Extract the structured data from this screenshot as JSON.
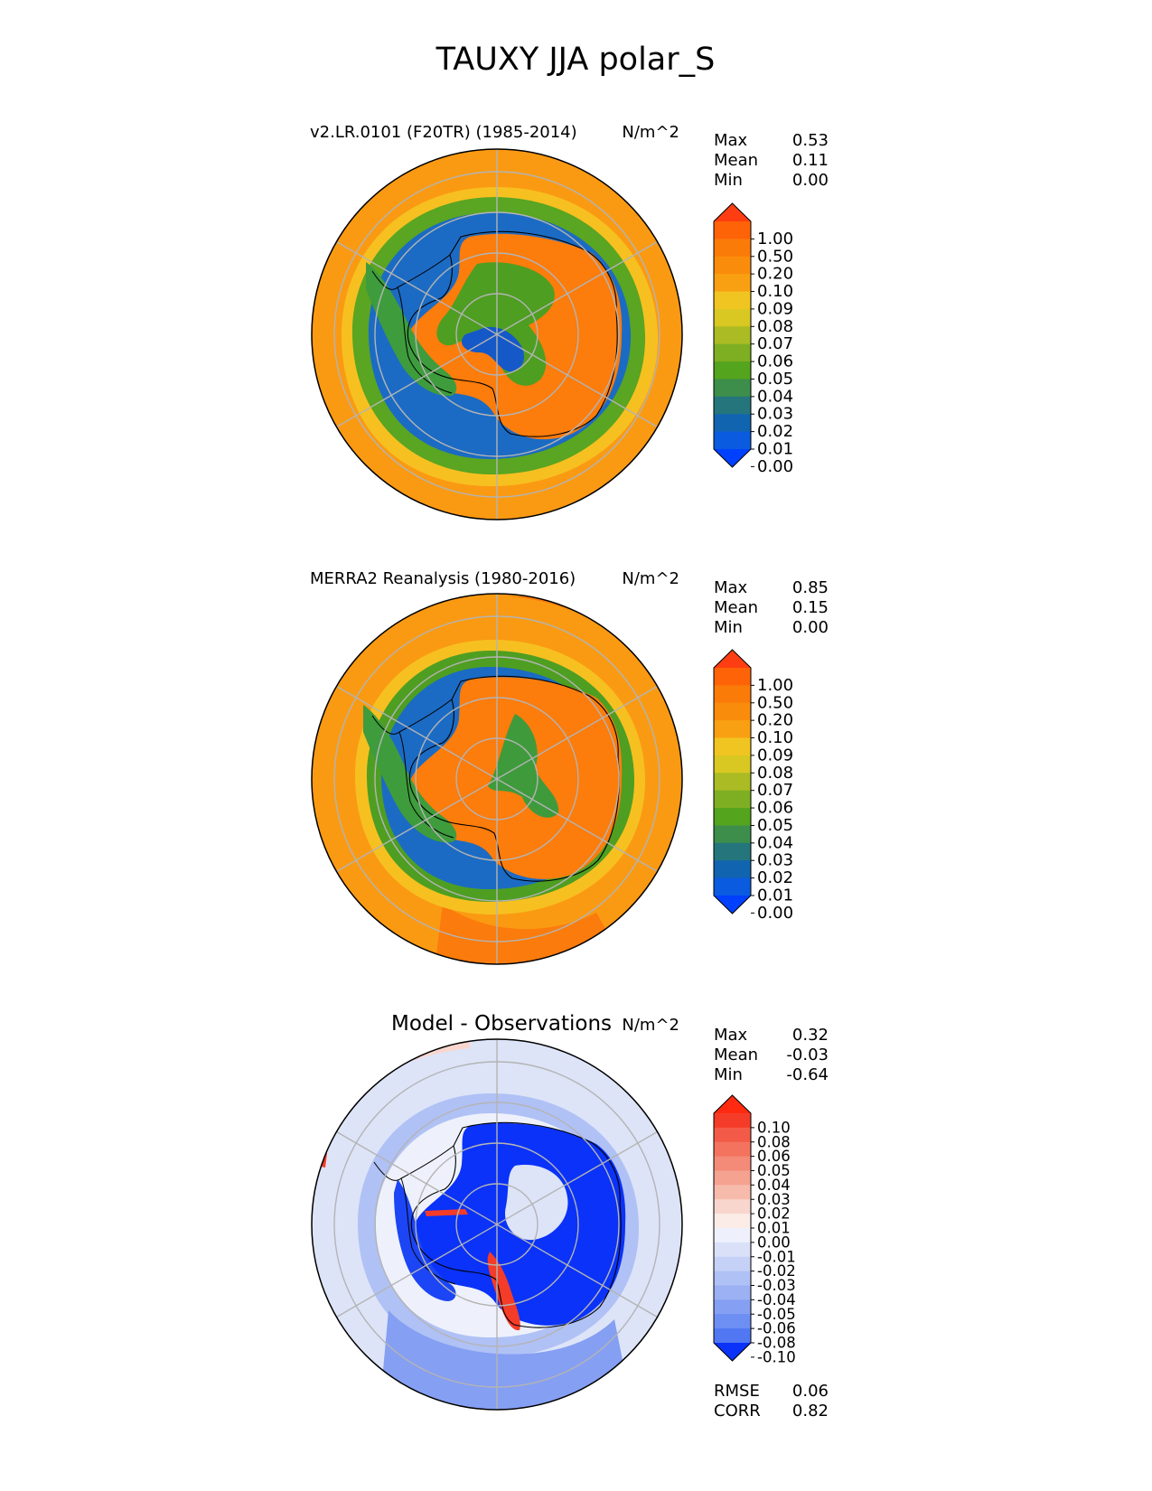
{
  "figure": {
    "title": "TAUXY JJA polar_S"
  },
  "panels": [
    {
      "id": "model",
      "title": "v2.LR.0101 (F20TR) (1985-2014)",
      "units": "N/m^2",
      "stats": [
        {
          "label": "Max",
          "value": "0.53"
        },
        {
          "label": "Mean",
          "value": "0.11"
        },
        {
          "label": "Min",
          "value": "0.00"
        }
      ]
    },
    {
      "id": "obs",
      "title": "MERRA2 Reanalysis (1980-2016)",
      "units": "N/m^2",
      "stats": [
        {
          "label": "Max",
          "value": "0.85"
        },
        {
          "label": "Mean",
          "value": "0.15"
        },
        {
          "label": "Min",
          "value": "0.00"
        }
      ]
    },
    {
      "id": "diff",
      "title": "Model - Observations",
      "units": "N/m^2",
      "stats": [
        {
          "label": "Max",
          "value": "0.32"
        },
        {
          "label": "Mean",
          "value": "-0.03"
        },
        {
          "label": "Min",
          "value": "-0.64"
        }
      ],
      "metrics": [
        {
          "label": "RMSE",
          "value": "0.06"
        },
        {
          "label": "CORR",
          "value": "0.82"
        }
      ]
    }
  ],
  "chart_data": [
    {
      "type": "heatmap",
      "projection": "south-polar-stereographic",
      "title": "v2.LR.0101 (F20TR) (1985-2014)",
      "units": "N/m^2",
      "colorbar": {
        "levels": [
          "1.00",
          "0.50",
          "0.20",
          "0.10",
          "0.09",
          "0.08",
          "0.07",
          "0.06",
          "0.05",
          "0.04",
          "0.03",
          "0.02",
          "0.01",
          "0.00"
        ],
        "colors": [
          "#fe3d12",
          "#fe6308",
          "#fb7b08",
          "#fa8c0c",
          "#f9a012",
          "#f1c521",
          "#d9c722",
          "#aabb24",
          "#7eaf22",
          "#55a41e",
          "#3c8e4a",
          "#24767c",
          "#1164b0",
          "#0a5be0",
          "#0040ff"
        ],
        "extend": "both"
      },
      "stats": {
        "max": 0.53,
        "mean": 0.11,
        "min": 0.0
      }
    },
    {
      "type": "heatmap",
      "projection": "south-polar-stereographic",
      "title": "MERRA2 Reanalysis (1980-2016)",
      "units": "N/m^2",
      "colorbar": {
        "levels": [
          "1.00",
          "0.50",
          "0.20",
          "0.10",
          "0.09",
          "0.08",
          "0.07",
          "0.06",
          "0.05",
          "0.04",
          "0.03",
          "0.02",
          "0.01",
          "0.00"
        ],
        "colors": [
          "#fe3d12",
          "#fe6308",
          "#fb7b08",
          "#fa8c0c",
          "#f9a012",
          "#f1c521",
          "#d9c722",
          "#aabb24",
          "#7eaf22",
          "#55a41e",
          "#3c8e4a",
          "#24767c",
          "#1164b0",
          "#0a5be0",
          "#0040ff"
        ],
        "extend": "both"
      },
      "stats": {
        "max": 0.85,
        "mean": 0.15,
        "min": 0.0
      }
    },
    {
      "type": "heatmap",
      "projection": "south-polar-stereographic",
      "title": "Model - Observations",
      "units": "N/m^2",
      "colorbar": {
        "levels": [
          "0.10",
          "0.08",
          "0.06",
          "0.05",
          "0.04",
          "0.03",
          "0.02",
          "0.01",
          "0.00",
          "-0.01",
          "-0.02",
          "-0.03",
          "-0.04",
          "-0.05",
          "-0.06",
          "-0.08",
          "-0.10"
        ],
        "colors": [
          "#ff2a10",
          "#f43c28",
          "#f35b48",
          "#f3735f",
          "#f48a78",
          "#f5a291",
          "#f7bbac",
          "#f9d6cd",
          "#fbece8",
          "#eef1fb",
          "#d9e0f8",
          "#c5d1f7",
          "#b0c1f5",
          "#9bb1f3",
          "#859ff2",
          "#6d8ef2",
          "#5177f2",
          "#0a32f8"
        ],
        "extend": "both"
      },
      "stats": {
        "max": 0.32,
        "mean": -0.03,
        "min": -0.64
      },
      "metrics": {
        "rmse": 0.06,
        "corr": 0.82
      }
    }
  ]
}
